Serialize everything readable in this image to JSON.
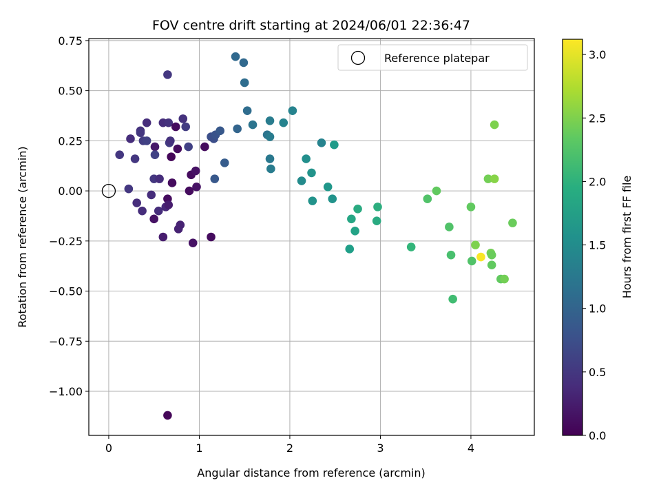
{
  "chart_data": {
    "type": "scatter",
    "title": "FOV centre drift starting at 2024/06/01 22:36:47",
    "xlabel": "Angular distance from reference (arcmin)",
    "ylabel": "Rotation from reference (arcmin)",
    "xlim": [
      -0.22,
      4.7
    ],
    "ylim": [
      -1.22,
      0.76
    ],
    "xticks": [
      0,
      1,
      2,
      3,
      4
    ],
    "xtick_labels": [
      "0",
      "1",
      "2",
      "3",
      "4"
    ],
    "yticks": [
      0.75,
      0.5,
      0.25,
      0.0,
      -0.25,
      -0.5,
      -0.75,
      -1.0
    ],
    "ytick_labels": [
      "0.75",
      "0.50",
      "0.25",
      "0.00",
      "−0.25",
      "−0.50",
      "−0.75",
      "−1.00"
    ],
    "grid": true,
    "legend": {
      "position": "top-right",
      "entries": [
        "Reference platepar"
      ]
    },
    "reference_point": {
      "x": 0,
      "y": 0
    },
    "colorbar": {
      "label": "Hours from first FF file",
      "range": [
        0,
        3.12
      ],
      "ticks": [
        0.0,
        0.5,
        1.0,
        1.5,
        2.0,
        2.5,
        3.0
      ],
      "tick_labels": [
        "0.0",
        "0.5",
        "1.0",
        "1.5",
        "2.0",
        "2.5",
        "3.0"
      ],
      "colormap": "viridis"
    },
    "points": [
      {
        "x": 0.12,
        "y": 0.18,
        "c": 0.5
      },
      {
        "x": 0.22,
        "y": 0.01,
        "c": 0.5
      },
      {
        "x": 0.24,
        "y": 0.26,
        "c": 0.4
      },
      {
        "x": 0.29,
        "y": 0.16,
        "c": 0.5
      },
      {
        "x": 0.31,
        "y": -0.06,
        "c": 0.4
      },
      {
        "x": 0.35,
        "y": 0.3,
        "c": 0.45
      },
      {
        "x": 0.35,
        "y": 0.29,
        "c": 0.5
      },
      {
        "x": 0.37,
        "y": -0.1,
        "c": 0.4
      },
      {
        "x": 0.38,
        "y": 0.25,
        "c": 0.55
      },
      {
        "x": 0.42,
        "y": 0.34,
        "c": 0.4
      },
      {
        "x": 0.42,
        "y": 0.25,
        "c": 0.6
      },
      {
        "x": 0.47,
        "y": -0.02,
        "c": 0.4
      },
      {
        "x": 0.5,
        "y": 0.06,
        "c": 0.5
      },
      {
        "x": 0.5,
        "y": -0.14,
        "c": 0.15
      },
      {
        "x": 0.51,
        "y": 0.22,
        "c": 0.2
      },
      {
        "x": 0.51,
        "y": 0.18,
        "c": 0.6
      },
      {
        "x": 0.55,
        "y": -0.1,
        "c": 0.4
      },
      {
        "x": 0.56,
        "y": 0.06,
        "c": 0.4
      },
      {
        "x": 0.6,
        "y": 0.34,
        "c": 0.4
      },
      {
        "x": 0.6,
        "y": -0.23,
        "c": 0.25
      },
      {
        "x": 0.63,
        "y": -0.08,
        "c": 0.35
      },
      {
        "x": 0.65,
        "y": -0.04,
        "c": 0.1
      },
      {
        "x": 0.65,
        "y": 0.58,
        "c": 0.5
      },
      {
        "x": 0.65,
        "y": -1.12,
        "c": 0.05
      },
      {
        "x": 0.66,
        "y": 0.34,
        "c": 0.45
      },
      {
        "x": 0.66,
        "y": -0.07,
        "c": 0.25
      },
      {
        "x": 0.67,
        "y": 0.24,
        "c": 0.55
      },
      {
        "x": 0.68,
        "y": 0.25,
        "c": 0.45
      },
      {
        "x": 0.69,
        "y": 0.17,
        "c": 0.05
      },
      {
        "x": 0.7,
        "y": 0.04,
        "c": 0.1
      },
      {
        "x": 0.74,
        "y": 0.32,
        "c": 0.1
      },
      {
        "x": 0.76,
        "y": 0.21,
        "c": 0.1
      },
      {
        "x": 0.77,
        "y": -0.19,
        "c": 0.3
      },
      {
        "x": 0.79,
        "y": -0.17,
        "c": 0.3
      },
      {
        "x": 0.82,
        "y": 0.36,
        "c": 0.45
      },
      {
        "x": 0.85,
        "y": 0.32,
        "c": 0.55
      },
      {
        "x": 0.88,
        "y": 0.22,
        "c": 0.6
      },
      {
        "x": 0.89,
        "y": 0.0,
        "c": 0.1
      },
      {
        "x": 0.91,
        "y": 0.08,
        "c": 0.1
      },
      {
        "x": 0.93,
        "y": -0.26,
        "c": 0.15
      },
      {
        "x": 0.96,
        "y": 0.1,
        "c": 0.15
      },
      {
        "x": 0.97,
        "y": 0.02,
        "c": 0.15
      },
      {
        "x": 1.06,
        "y": 0.22,
        "c": 0.1
      },
      {
        "x": 1.13,
        "y": -0.23,
        "c": 0.1
      },
      {
        "x": 1.13,
        "y": 0.27,
        "c": 0.75
      },
      {
        "x": 1.16,
        "y": 0.26,
        "c": 0.75
      },
      {
        "x": 1.17,
        "y": 0.06,
        "c": 0.85
      },
      {
        "x": 1.18,
        "y": 0.28,
        "c": 0.8
      },
      {
        "x": 1.23,
        "y": 0.3,
        "c": 0.85
      },
      {
        "x": 1.28,
        "y": 0.14,
        "c": 0.9
      },
      {
        "x": 1.4,
        "y": 0.67,
        "c": 1.05
      },
      {
        "x": 1.42,
        "y": 0.31,
        "c": 1.0
      },
      {
        "x": 1.49,
        "y": 0.64,
        "c": 1.05
      },
      {
        "x": 1.5,
        "y": 0.54,
        "c": 1.1
      },
      {
        "x": 1.53,
        "y": 0.4,
        "c": 1.1
      },
      {
        "x": 1.59,
        "y": 0.33,
        "c": 1.2
      },
      {
        "x": 1.75,
        "y": 0.28,
        "c": 1.2
      },
      {
        "x": 1.78,
        "y": 0.27,
        "c": 1.3
      },
      {
        "x": 1.78,
        "y": 0.35,
        "c": 1.3
      },
      {
        "x": 1.78,
        "y": 0.16,
        "c": 1.25
      },
      {
        "x": 1.79,
        "y": 0.11,
        "c": 1.3
      },
      {
        "x": 1.93,
        "y": 0.34,
        "c": 1.4
      },
      {
        "x": 2.03,
        "y": 0.4,
        "c": 1.4
      },
      {
        "x": 2.13,
        "y": 0.05,
        "c": 1.5
      },
      {
        "x": 2.18,
        "y": 0.16,
        "c": 1.55
      },
      {
        "x": 2.24,
        "y": 0.09,
        "c": 1.6
      },
      {
        "x": 2.25,
        "y": -0.05,
        "c": 1.6
      },
      {
        "x": 2.35,
        "y": 0.24,
        "c": 1.4
      },
      {
        "x": 2.42,
        "y": 0.02,
        "c": 1.65
      },
      {
        "x": 2.47,
        "y": -0.04,
        "c": 1.6
      },
      {
        "x": 2.49,
        "y": 0.23,
        "c": 1.7
      },
      {
        "x": 2.66,
        "y": -0.29,
        "c": 1.75
      },
      {
        "x": 2.68,
        "y": -0.14,
        "c": 1.85
      },
      {
        "x": 2.72,
        "y": -0.2,
        "c": 1.8
      },
      {
        "x": 2.75,
        "y": -0.09,
        "c": 1.9
      },
      {
        "x": 2.96,
        "y": -0.15,
        "c": 1.9
      },
      {
        "x": 2.97,
        "y": -0.08,
        "c": 1.95
      },
      {
        "x": 3.34,
        "y": -0.28,
        "c": 2.05
      },
      {
        "x": 3.52,
        "y": -0.04,
        "c": 2.25
      },
      {
        "x": 3.62,
        "y": 0.0,
        "c": 2.35
      },
      {
        "x": 3.76,
        "y": -0.18,
        "c": 2.25
      },
      {
        "x": 3.78,
        "y": -0.32,
        "c": 2.2
      },
      {
        "x": 3.8,
        "y": -0.54,
        "c": 2.15
      },
      {
        "x": 4.0,
        "y": -0.08,
        "c": 2.35
      },
      {
        "x": 4.01,
        "y": -0.35,
        "c": 2.25
      },
      {
        "x": 4.05,
        "y": -0.27,
        "c": 2.5
      },
      {
        "x": 4.11,
        "y": -0.33,
        "c": 3.1
      },
      {
        "x": 4.19,
        "y": 0.06,
        "c": 2.45
      },
      {
        "x": 4.22,
        "y": -0.31,
        "c": 2.45
      },
      {
        "x": 4.23,
        "y": -0.32,
        "c": 2.4
      },
      {
        "x": 4.23,
        "y": -0.37,
        "c": 2.35
      },
      {
        "x": 4.26,
        "y": 0.06,
        "c": 2.55
      },
      {
        "x": 4.26,
        "y": 0.33,
        "c": 2.5
      },
      {
        "x": 4.33,
        "y": -0.44,
        "c": 2.35
      },
      {
        "x": 4.37,
        "y": -0.44,
        "c": 2.45
      },
      {
        "x": 4.46,
        "y": -0.16,
        "c": 2.4
      }
    ]
  }
}
